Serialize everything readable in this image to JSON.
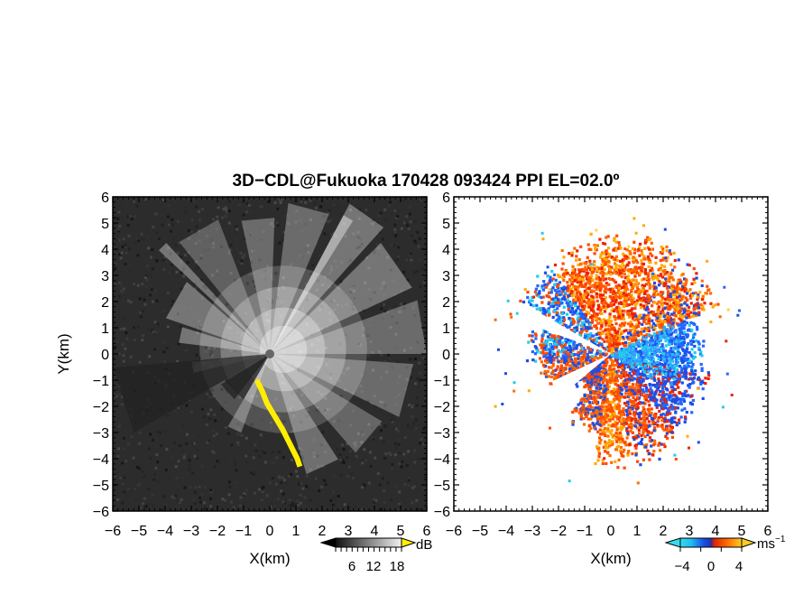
{
  "title": "3D−CDL@Fukuoka 170428 093424 PPI EL=02.0º",
  "panels": [
    {
      "name": "snr",
      "xlabel": "X(km)",
      "ylabel": "Y(km)",
      "ticks": [
        "−6",
        "−5",
        "−4",
        "−3",
        "−2",
        "−1",
        "0",
        "1",
        "2",
        "3",
        "4",
        "5",
        "6"
      ],
      "colorbar": {
        "unit": "dB",
        "ticks": [
          "6",
          "12",
          "18"
        ]
      }
    },
    {
      "name": "velocity",
      "xlabel": "X(km)",
      "colorbar": {
        "unit": "ms",
        "unit_sup": "−1",
        "ticks": [
          "−4",
          "0",
          "4"
        ]
      }
    }
  ],
  "chart_data": [
    {
      "type": "heatmap",
      "variable": "SNR",
      "unit": "dB",
      "xlim": [
        -6,
        6
      ],
      "ylim": [
        -6,
        6
      ],
      "xlabel": "X(km)",
      "ylabel": "Y(km)",
      "colorbar_ticks": [
        6,
        12,
        18
      ],
      "colors": {
        "background": "#333333",
        "high": "#ffffff",
        "flag": "#ffee00"
      }
    },
    {
      "type": "heatmap",
      "variable": "Doppler velocity",
      "unit": "ms⁻¹",
      "xlim": [
        -6,
        6
      ],
      "ylim": [
        -6,
        6
      ],
      "xlabel": "X(km)",
      "colorbar_ticks": [
        -4,
        0,
        4
      ],
      "colors": {
        "negative": "#1a4fe6",
        "near_zero_negative": "#22ccee",
        "positive": "#ff4a00",
        "high_positive": "#ffaa00"
      }
    }
  ]
}
